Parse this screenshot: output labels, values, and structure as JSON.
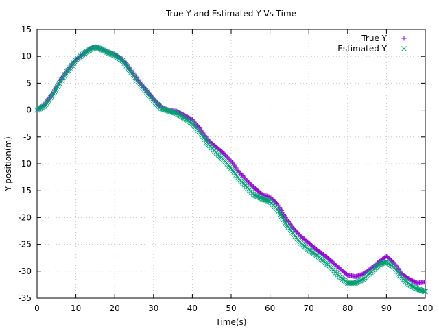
{
  "chart_data": {
    "type": "scatter",
    "title": "True Y and Estimated Y Vs Time",
    "xlabel": "Time(s)",
    "ylabel": "Y position(m)",
    "xlim": [
      0,
      100
    ],
    "ylim": [
      -35,
      15
    ],
    "xticks": [
      0,
      10,
      20,
      30,
      40,
      50,
      60,
      70,
      80,
      90,
      100
    ],
    "yticks": [
      15,
      10,
      5,
      0,
      -5,
      -10,
      -15,
      -20,
      -25,
      -30,
      -35
    ],
    "grid": true,
    "legend_position": "top-right",
    "series": [
      {
        "name": "True Y",
        "marker": "plus",
        "color": "#9400d3",
        "x": [
          0,
          2,
          4,
          6,
          8,
          10,
          12,
          14,
          15,
          16,
          18,
          20,
          22,
          24,
          26,
          28,
          30,
          32,
          34,
          36,
          38,
          40,
          42,
          44,
          46,
          48,
          50,
          52,
          54,
          56,
          58,
          60,
          62,
          64,
          66,
          68,
          70,
          72,
          74,
          76,
          78,
          80,
          82,
          84,
          86,
          88,
          90,
          92,
          94,
          96,
          98,
          100
        ],
        "y": [
          0,
          1,
          3,
          5.5,
          7.5,
          9.3,
          10.5,
          11.5,
          11.8,
          11.5,
          10.9,
          10.3,
          9.3,
          7.5,
          5.5,
          3.8,
          2,
          0.5,
          0,
          -0.2,
          -1,
          -1.8,
          -3.5,
          -5.5,
          -6.8,
          -8,
          -9.5,
          -11.5,
          -13,
          -14.5,
          -15.7,
          -16.2,
          -17.5,
          -20,
          -22,
          -23.5,
          -24.7,
          -26,
          -27,
          -28.2,
          -29.5,
          -30.7,
          -31,
          -30.5,
          -29.5,
          -28.3,
          -27.2,
          -28.5,
          -30.5,
          -31.5,
          -32.2,
          -32
        ]
      },
      {
        "name": "Estimated Y",
        "marker": "cross",
        "color": "#009e73",
        "x": [
          0,
          2,
          4,
          6,
          8,
          10,
          12,
          14,
          15,
          16,
          18,
          20,
          22,
          24,
          26,
          28,
          30,
          32,
          34,
          36,
          38,
          40,
          42,
          44,
          46,
          48,
          50,
          52,
          54,
          56,
          58,
          60,
          62,
          64,
          66,
          68,
          70,
          72,
          74,
          76,
          78,
          80,
          82,
          84,
          86,
          88,
          90,
          92,
          94,
          96,
          98,
          100
        ],
        "y": [
          0,
          0.8,
          2.8,
          5.3,
          7.4,
          9.2,
          10.5,
          11.4,
          11.7,
          11.5,
          10.8,
          10.2,
          9.2,
          7.3,
          5.3,
          3.6,
          1.8,
          0.3,
          -0.2,
          -0.6,
          -1.5,
          -2.5,
          -4.2,
          -6.2,
          -7.8,
          -9.2,
          -10.8,
          -12.8,
          -14.3,
          -15.8,
          -16.5,
          -17,
          -18.5,
          -21,
          -23,
          -24.8,
          -26,
          -27,
          -28.2,
          -29.5,
          -31,
          -32.2,
          -32.2,
          -31.5,
          -30.2,
          -28.8,
          -28.2,
          -29.3,
          -31.2,
          -32.5,
          -33.3,
          -33.8
        ]
      }
    ]
  }
}
